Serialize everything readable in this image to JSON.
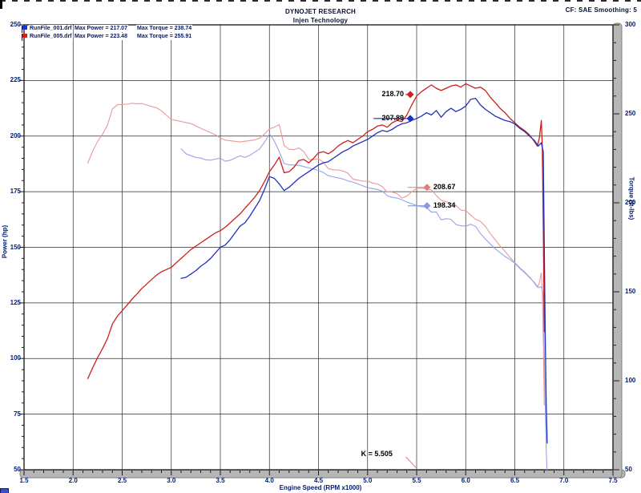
{
  "header": {
    "title": "DYNOJET RESEARCH",
    "subtitle": "Injen Technology",
    "correction": "CF: SAE  Smoothing: 5"
  },
  "legend": {
    "rows": [
      {
        "file": "RunFile_001.drf",
        "max_power_label": "Max Power = 217.07",
        "max_torque_label": "Max Torque = 238.74",
        "color": "#2233cc"
      },
      {
        "file": "RunFile_005.drf",
        "max_power_label": "Max Power = 223.48",
        "max_torque_label": "Max Torque = 255.91",
        "color": "#d02020"
      }
    ]
  },
  "annotations": [
    {
      "text": "218.70",
      "rpm": 5.435,
      "value": 218.7,
      "axis": "power",
      "color": "#cc1f1f",
      "side": "left",
      "leader": 6
    },
    {
      "text": "207.89",
      "rpm": 5.435,
      "value": 207.89,
      "axis": "power",
      "color": "#2030c0",
      "side": "left",
      "leader": 46,
      "strike": true
    },
    {
      "text": "208.67",
      "rpm": 5.605,
      "value": 208.67,
      "axis": "torque",
      "color": "#e07f7f",
      "side": "right",
      "leader": 24
    },
    {
      "text": "198.34",
      "rpm": 5.605,
      "value": 198.34,
      "axis": "torque",
      "color": "#8f96e0",
      "side": "right",
      "leader": 24
    },
    {
      "text": "K = 5.505",
      "rpm": 5.505,
      "axis": "x",
      "color": "#000000",
      "leader_color": "#dd9090"
    }
  ],
  "chart_data": {
    "type": "line",
    "title": "DYNOJET RESEARCH",
    "subtitle": "Injen Technology",
    "x_axis": {
      "label": "Engine Speed (RPM x1000)",
      "min": 1.5,
      "max": 7.5,
      "major_step": 0.5,
      "minor_step": 0.1,
      "tick_labels": [
        "1.5",
        "2.0",
        "2.5",
        "3.0",
        "3.5",
        "4.0",
        "4.5",
        "5.0",
        "5.5",
        "6.0",
        "6.5",
        "7.0",
        "7.5"
      ]
    },
    "y_left": {
      "label": "Power (hp)",
      "min": 50,
      "max": 250,
      "major_step": 25,
      "minor_step": 5,
      "tick_labels": [
        "250",
        "225",
        "200",
        "175",
        "150",
        "125",
        "100",
        "75",
        "50"
      ]
    },
    "y_right": {
      "label": "Torque (ft-lbs)",
      "min": 50,
      "max": 300,
      "major_step": 50,
      "minor_step": 10,
      "tick_labels": [
        "300",
        "250",
        "200",
        "150",
        "100",
        "50"
      ]
    },
    "grid": {
      "x_lines_every": 0.5,
      "y_lines_every_hp": 25
    },
    "series": [
      {
        "name": "RunFile_005.drf power",
        "axis": "power",
        "color": "#cc1f1f",
        "width": 1.3,
        "max": 223.48,
        "points": [
          [
            2.15,
            91
          ],
          [
            2.2,
            96
          ],
          [
            2.25,
            100.5
          ],
          [
            2.3,
            104.5
          ],
          [
            2.35,
            109
          ],
          [
            2.4,
            115.5
          ],
          [
            2.45,
            119
          ],
          [
            2.5,
            121.5
          ],
          [
            2.55,
            124
          ],
          [
            2.6,
            126.7
          ],
          [
            2.65,
            129
          ],
          [
            2.7,
            131.5
          ],
          [
            2.75,
            133.5
          ],
          [
            2.8,
            135.5
          ],
          [
            2.85,
            137.5
          ],
          [
            2.9,
            139
          ],
          [
            2.95,
            140
          ],
          [
            3.0,
            141
          ],
          [
            3.05,
            143
          ],
          [
            3.1,
            145
          ],
          [
            3.15,
            147
          ],
          [
            3.2,
            149
          ],
          [
            3.25,
            150.5
          ],
          [
            3.3,
            152
          ],
          [
            3.35,
            153.5
          ],
          [
            3.4,
            155
          ],
          [
            3.45,
            156.5
          ],
          [
            3.5,
            157.5
          ],
          [
            3.55,
            159
          ],
          [
            3.6,
            161
          ],
          [
            3.65,
            163
          ],
          [
            3.7,
            165
          ],
          [
            3.75,
            167.5
          ],
          [
            3.8,
            170
          ],
          [
            3.85,
            172.5
          ],
          [
            3.9,
            175.5
          ],
          [
            3.95,
            179.5
          ],
          [
            4.0,
            184
          ],
          [
            4.05,
            187
          ],
          [
            4.1,
            190.5
          ],
          [
            4.15,
            183.5
          ],
          [
            4.2,
            184
          ],
          [
            4.25,
            186
          ],
          [
            4.3,
            189
          ],
          [
            4.35,
            189.5
          ],
          [
            4.4,
            188
          ],
          [
            4.45,
            190
          ],
          [
            4.5,
            192.5
          ],
          [
            4.55,
            193
          ],
          [
            4.6,
            192
          ],
          [
            4.65,
            193.5
          ],
          [
            4.7,
            195.5
          ],
          [
            4.75,
            197
          ],
          [
            4.8,
            198
          ],
          [
            4.85,
            197
          ],
          [
            4.9,
            198.5
          ],
          [
            4.95,
            200
          ],
          [
            5.0,
            202
          ],
          [
            5.05,
            203
          ],
          [
            5.1,
            204.5
          ],
          [
            5.15,
            205
          ],
          [
            5.2,
            204
          ],
          [
            5.25,
            206
          ],
          [
            5.3,
            207
          ],
          [
            5.35,
            206.5
          ],
          [
            5.4,
            209.5
          ],
          [
            5.45,
            214
          ],
          [
            5.5,
            218
          ],
          [
            5.55,
            220
          ],
          [
            5.6,
            221.5
          ],
          [
            5.65,
            223
          ],
          [
            5.7,
            221.5
          ],
          [
            5.75,
            220.5
          ],
          [
            5.8,
            221.5
          ],
          [
            5.85,
            222.5
          ],
          [
            5.9,
            223
          ],
          [
            5.95,
            222
          ],
          [
            6.0,
            223.5
          ],
          [
            6.05,
            222.5
          ],
          [
            6.1,
            221.5
          ],
          [
            6.15,
            222
          ],
          [
            6.2,
            220.5
          ],
          [
            6.25,
            217.5
          ],
          [
            6.3,
            215
          ],
          [
            6.35,
            212.5
          ],
          [
            6.4,
            210.5
          ],
          [
            6.45,
            208
          ],
          [
            6.5,
            206
          ],
          [
            6.55,
            204
          ],
          [
            6.6,
            202.5
          ],
          [
            6.65,
            200.5
          ],
          [
            6.7,
            197.5
          ],
          [
            6.73,
            195.5
          ],
          [
            6.75,
            199
          ],
          [
            6.77,
            207
          ],
          [
            6.78,
            195
          ],
          [
            6.79,
            160
          ],
          [
            6.8,
            112
          ]
        ]
      },
      {
        "name": "RunFile_001.drf power",
        "axis": "power",
        "color": "#2030c0",
        "width": 1.3,
        "max": 217.07,
        "points": [
          [
            3.1,
            136
          ],
          [
            3.15,
            136.5
          ],
          [
            3.2,
            138
          ],
          [
            3.25,
            139.5
          ],
          [
            3.3,
            141.5
          ],
          [
            3.35,
            143
          ],
          [
            3.4,
            145
          ],
          [
            3.45,
            147.5
          ],
          [
            3.5,
            150
          ],
          [
            3.55,
            151
          ],
          [
            3.6,
            153.5
          ],
          [
            3.65,
            156.5
          ],
          [
            3.7,
            159.5
          ],
          [
            3.75,
            161
          ],
          [
            3.8,
            164
          ],
          [
            3.85,
            167.5
          ],
          [
            3.9,
            171
          ],
          [
            3.95,
            176
          ],
          [
            4.0,
            181.8
          ],
          [
            4.05,
            181
          ],
          [
            4.1,
            178.5
          ],
          [
            4.15,
            175.5
          ],
          [
            4.2,
            177
          ],
          [
            4.25,
            179
          ],
          [
            4.3,
            181
          ],
          [
            4.35,
            182.5
          ],
          [
            4.4,
            184
          ],
          [
            4.45,
            185.5
          ],
          [
            4.5,
            187
          ],
          [
            4.55,
            188
          ],
          [
            4.6,
            188.5
          ],
          [
            4.65,
            190
          ],
          [
            4.7,
            191.5
          ],
          [
            4.75,
            193
          ],
          [
            4.8,
            194
          ],
          [
            4.85,
            195.5
          ],
          [
            4.9,
            196.5
          ],
          [
            4.95,
            197.5
          ],
          [
            5.0,
            198.5
          ],
          [
            5.05,
            200
          ],
          [
            5.1,
            201.5
          ],
          [
            5.15,
            202.5
          ],
          [
            5.2,
            202
          ],
          [
            5.25,
            203
          ],
          [
            5.3,
            204.5
          ],
          [
            5.35,
            205.5
          ],
          [
            5.4,
            206
          ],
          [
            5.45,
            207
          ],
          [
            5.5,
            207.9
          ],
          [
            5.55,
            209
          ],
          [
            5.6,
            210.5
          ],
          [
            5.65,
            209.5
          ],
          [
            5.7,
            211.5
          ],
          [
            5.75,
            208.5
          ],
          [
            5.8,
            211
          ],
          [
            5.85,
            212.5
          ],
          [
            5.9,
            211
          ],
          [
            5.95,
            212
          ],
          [
            6.0,
            213.5
          ],
          [
            6.05,
            216.5
          ],
          [
            6.1,
            217
          ],
          [
            6.15,
            214
          ],
          [
            6.2,
            212
          ],
          [
            6.25,
            210.5
          ],
          [
            6.3,
            209
          ],
          [
            6.35,
            208
          ],
          [
            6.4,
            207
          ],
          [
            6.45,
            206.5
          ],
          [
            6.5,
            205.5
          ],
          [
            6.55,
            203.5
          ],
          [
            6.6,
            202
          ],
          [
            6.65,
            200
          ],
          [
            6.7,
            198
          ],
          [
            6.74,
            195.5
          ],
          [
            6.77,
            197
          ],
          [
            6.79,
            193
          ],
          [
            6.8,
            150
          ],
          [
            6.81,
            110
          ],
          [
            6.82,
            80
          ],
          [
            6.83,
            62
          ]
        ]
      },
      {
        "name": "RunFile_005.drf torque",
        "axis": "torque",
        "color": "#e89a9a",
        "width": 1.1,
        "max": 255.91,
        "derived_from": "RunFile_005.drf power",
        "formula": "torque = hp * 5252 / rpm"
      },
      {
        "name": "RunFile_001.drf torque",
        "axis": "torque",
        "color": "#9aa3e8",
        "width": 1.1,
        "max": 238.74,
        "derived_from": "RunFile_001.drf power",
        "formula": "torque = hp * 5252 / rpm"
      }
    ]
  }
}
